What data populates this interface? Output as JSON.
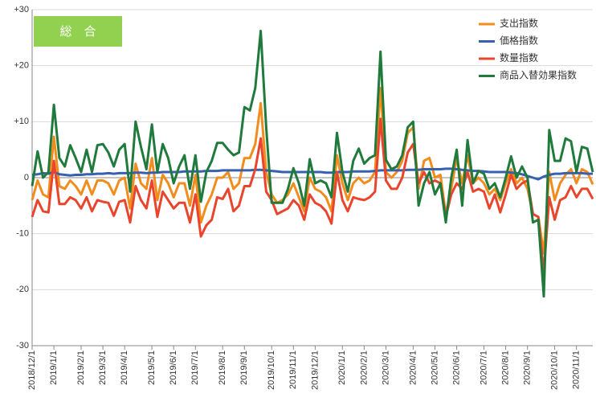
{
  "chart_data": {
    "type": "line",
    "title": "総　合",
    "legend": "upper right",
    "grid": true,
    "categories": [
      "2018/12/1",
      null,
      null,
      null,
      "2019/1/1",
      null,
      null,
      null,
      null,
      "2019/2/1",
      null,
      null,
      null,
      "2019/3/1",
      null,
      null,
      null,
      "2019/4/1",
      null,
      null,
      null,
      null,
      "2019/5/1",
      null,
      null,
      null,
      "2019/6/1",
      null,
      null,
      null,
      "2019/7/1",
      null,
      null,
      null,
      null,
      "2019/8/1",
      null,
      null,
      null,
      "2019/9/1",
      null,
      null,
      null,
      null,
      "2019/10/1",
      null,
      null,
      null,
      "2019/11/1",
      null,
      null,
      null,
      "2019/12/1",
      null,
      null,
      null,
      null,
      "2020/1/1",
      null,
      null,
      null,
      "2020/2/1",
      null,
      null,
      null,
      "2020/3/1",
      null,
      null,
      null,
      null,
      "2020/4/1",
      null,
      null,
      null,
      "2020/5/1",
      null,
      null,
      null,
      "2020/6/1",
      null,
      null,
      null,
      null,
      "2020/7/1",
      null,
      null,
      null,
      "2020/8/1",
      null,
      null,
      null,
      "2020/9/1",
      null,
      null,
      null,
      null,
      "2020/10/1",
      null,
      null,
      null,
      "2020/11/1",
      null,
      null,
      null
    ],
    "ylim": [
      -30,
      30
    ],
    "yticks": [
      {
        "value": -30,
        "label": "-30"
      },
      -20,
      -10,
      0,
      {
        "value": 10,
        "label": "+10"
      },
      {
        "value": 20,
        "label": "+20"
      },
      {
        "value": 30,
        "label": "+30"
      }
    ],
    "series": [
      {
        "name": "支出指数",
        "color": "#f28c1c",
        "values": [
          -4,
          -0.5,
          -3,
          -3.5,
          7.3,
          -1.5,
          -2,
          -0.5,
          -1.5,
          -3,
          -0.5,
          -3,
          -0.5,
          -0.5,
          -1,
          -3,
          -0.5,
          0,
          -5.5,
          2.5,
          -1,
          -2,
          3.5,
          -4,
          0.5,
          -1,
          -3.5,
          -1,
          -1,
          -5,
          0.5,
          -8,
          -5,
          -3,
          0,
          0,
          1,
          -2,
          -1,
          3.5,
          3.5,
          6,
          13.3,
          1,
          -3,
          -4.5,
          -4,
          -3,
          -1,
          -3.5,
          -6,
          0,
          -2,
          -2.5,
          -3.5,
          -6,
          4,
          -1,
          -4,
          -1,
          0,
          -1,
          -0.5,
          1,
          16,
          1,
          0,
          1,
          3,
          8,
          9,
          -2,
          3,
          3.5,
          0,
          0.5,
          -6.5,
          -2,
          3.5,
          -1,
          4,
          -1,
          0,
          -1,
          -3,
          -2,
          -4,
          -1,
          1.5,
          -1,
          0,
          -2,
          -6.5,
          -7,
          -13.5,
          1,
          -4,
          -1,
          0.5,
          1.5,
          -1,
          1.5,
          1,
          -1.2
        ]
      },
      {
        "name": "価格指数",
        "color": "#3760b0",
        "values": [
          0.5,
          0.6,
          0.8,
          0.7,
          1,
          0.6,
          0.5,
          0.4,
          0.5,
          0.5,
          0.6,
          0.6,
          0.7,
          0.7,
          0.8,
          0.7,
          0.8,
          0.8,
          0.8,
          0.9,
          0.9,
          0.8,
          0.9,
          0.9,
          1,
          1,
          1,
          1,
          1.1,
          1.1,
          1.1,
          1.1,
          1.2,
          1.2,
          1.2,
          1.3,
          1.3,
          1.3,
          1.3,
          1.3,
          1.3,
          1.4,
          1.4,
          1.3,
          1.2,
          1.1,
          1,
          1,
          1,
          1,
          1,
          1,
          1,
          1,
          0.9,
          0.9,
          1,
          1,
          1,
          1.1,
          1.1,
          1.1,
          1.1,
          1.2,
          1.3,
          1.3,
          1.3,
          1.3,
          1.3,
          1.4,
          1.4,
          1.4,
          1.5,
          1.5,
          1.5,
          1.5,
          1.6,
          1.6,
          1.5,
          1.4,
          1.3,
          1.2,
          1.2,
          1.1,
          1,
          1,
          1,
          1,
          0.9,
          0.8,
          0.6,
          0.3,
          0,
          -0.3,
          0.2,
          0.5,
          0.7,
          0.7,
          0.8,
          0.8,
          0.8,
          0.8,
          0.7,
          0.7
        ]
      },
      {
        "name": "数量指数",
        "color": "#e8452c",
        "values": [
          -7,
          -4,
          -6,
          -6.2,
          3,
          -4.7,
          -4.7,
          -3.5,
          -4,
          -5.5,
          -3.5,
          -6,
          -4,
          -4.3,
          -4.5,
          -6.8,
          -4.3,
          -4,
          -8,
          -1.5,
          -4,
          -5.5,
          -0.5,
          -7,
          -2.5,
          -4,
          -5.5,
          -4.5,
          -4.5,
          -8,
          -3,
          -10.5,
          -8.5,
          -7.5,
          -3.5,
          -3.8,
          -2,
          -6,
          -5,
          -1.5,
          -1.5,
          1.5,
          7,
          -2.5,
          -4,
          -6.5,
          -6,
          -5.5,
          -4,
          -5,
          -7.5,
          -3,
          -4.5,
          -5,
          -6,
          -8.2,
          1,
          -4,
          -6,
          -3.5,
          -3.8,
          -4,
          -3.5,
          -2.5,
          10.5,
          -0.5,
          -2,
          -2,
          0,
          4.5,
          6,
          -1,
          1,
          -1,
          -0.5,
          -1,
          -7,
          -3,
          -1,
          -2,
          1,
          -2.5,
          -2,
          -2.5,
          -5.5,
          -3,
          -6.2,
          -3,
          0.5,
          -2,
          -1,
          -0.5,
          -6.5,
          -7,
          -17,
          -3.5,
          -7.5,
          -4,
          -3.5,
          -1.5,
          -3.5,
          -2,
          -2,
          -3.8
        ]
      },
      {
        "name": "商品入替効果指数",
        "color": "#1f7a3c",
        "values": [
          -1.5,
          4.7,
          0,
          1,
          13,
          3.5,
          2,
          5.8,
          3.5,
          1,
          5,
          1,
          5.8,
          6,
          4.5,
          2,
          5,
          6,
          -2.5,
          10,
          5.5,
          1.5,
          9.5,
          1,
          6,
          3.5,
          -1,
          2,
          4,
          -2,
          4,
          -4.3,
          1,
          3,
          6.2,
          6.2,
          5,
          4,
          4.5,
          12.6,
          12,
          16,
          26.2,
          9,
          -4.5,
          -4.5,
          -4.5,
          -2,
          1.7,
          -1,
          -5,
          3.3,
          -1,
          -0.5,
          -1,
          -3.5,
          8,
          1,
          -2.5,
          3,
          5.2,
          2.5,
          3.5,
          4,
          22.5,
          3.2,
          1.5,
          2,
          4,
          9,
          10,
          -5,
          -1,
          1,
          -3,
          -1,
          -8,
          0,
          5,
          -5,
          6.7,
          -1,
          1.2,
          0.7,
          -2,
          -1,
          -3.5,
          0,
          3.8,
          0,
          2,
          0,
          -8,
          -7.5,
          -21.2,
          8.5,
          3,
          3,
          7,
          6.5,
          1,
          5.5,
          5.2,
          1
        ]
      }
    ]
  }
}
